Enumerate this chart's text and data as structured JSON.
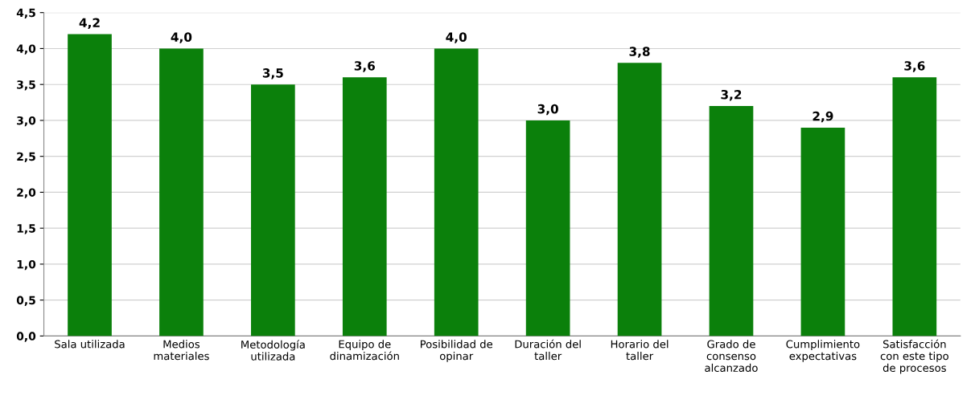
{
  "chart_data": {
    "type": "bar",
    "categories": [
      "Sala utilizada",
      "Medios materiales",
      "Metodología utilizada",
      "Equipo de dinamización",
      "Posibilidad de opinar",
      "Duración del taller",
      "Horario del taller",
      "Grado de consenso alcanzado",
      "Cumplimiento expectativas",
      "Satisfacción con este tipo de procesos"
    ],
    "values": [
      4.2,
      4.0,
      3.5,
      3.6,
      4.0,
      3.0,
      3.8,
      3.2,
      2.9,
      3.6
    ],
    "value_labels": [
      "4,2",
      "4,0",
      "3,5",
      "3,6",
      "4,0",
      "3,0",
      "3,8",
      "3,2",
      "2,9",
      "3,6"
    ],
    "color": "#0b800b",
    "ylim": [
      0,
      4.5
    ],
    "yticks": [
      {
        "value": 0,
        "label": "0,0"
      },
      {
        "value": 0.5,
        "label": "0,5"
      },
      {
        "value": 1,
        "label": "1,0"
      },
      {
        "value": 1.5,
        "label": "1,5"
      },
      {
        "value": 2,
        "label": "2,0"
      },
      {
        "value": 2.5,
        "label": "2,5"
      },
      {
        "value": 3,
        "label": "3,0"
      },
      {
        "value": 3.5,
        "label": "3,5"
      },
      {
        "value": 4,
        "label": "4,0"
      },
      {
        "value": 4.5,
        "label": "4,5"
      }
    ],
    "grid": "y"
  }
}
